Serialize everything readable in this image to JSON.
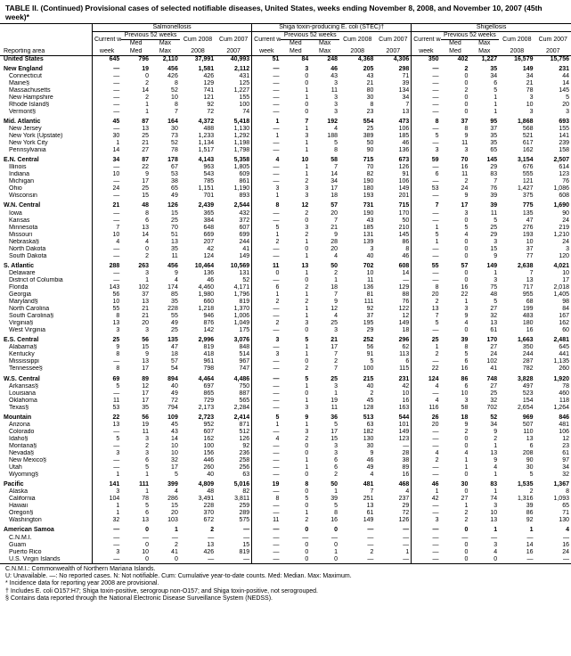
{
  "caption": "TABLE II. (Continued) Provisional cases of selected notifiable diseases, United States, weeks ending November 8, 2008, and November 10, 2007 (45th week)*",
  "diseases": [
    "Salmonellosis",
    "Shiga toxin-producing E. coli (STEC)†",
    "Shigellosis"
  ],
  "subhead": {
    "current": "Current week",
    "prev": "Previous 52 weeks",
    "m": "Med",
    "x": "Max",
    "c08": "Cum 2008",
    "c07": "Cum 2007"
  },
  "area_col": "Reporting area",
  "rows": [
    {
      "a": "United States",
      "b": 1,
      "v": [
        "645",
        "796",
        "2,110",
        "37,991",
        "40,993",
        "51",
        "84",
        "248",
        "4,368",
        "4,306",
        "350",
        "402",
        "1,227",
        "16,579",
        "15,756"
      ]
    },
    {
      "a": "New England",
      "s": 1,
      "v": [
        "—",
        "19",
        "456",
        "1,581",
        "2,112",
        "—",
        "3",
        "46",
        "205",
        "298",
        "—",
        "2",
        "35",
        "149",
        "231"
      ]
    },
    {
      "a": "Connecticut",
      "v": [
        "—",
        "0",
        "426",
        "426",
        "431",
        "—",
        "0",
        "43",
        "43",
        "71",
        "—",
        "0",
        "34",
        "34",
        "44"
      ]
    },
    {
      "a": "Maine§",
      "v": [
        "—",
        "2",
        "8",
        "129",
        "125",
        "—",
        "0",
        "3",
        "21",
        "39",
        "—",
        "0",
        "6",
        "21",
        "14"
      ]
    },
    {
      "a": "Massachusetts",
      "v": [
        "—",
        "14",
        "52",
        "741",
        "1,227",
        "—",
        "1",
        "11",
        "80",
        "134",
        "—",
        "2",
        "5",
        "78",
        "145"
      ]
    },
    {
      "a": "New Hampshire",
      "v": [
        "—",
        "2",
        "10",
        "121",
        "155",
        "—",
        "1",
        "3",
        "30",
        "34",
        "—",
        "0",
        "1",
        "3",
        "5"
      ]
    },
    {
      "a": "Rhode Island§",
      "v": [
        "—",
        "1",
        "8",
        "92",
        "100",
        "—",
        "0",
        "3",
        "8",
        "7",
        "—",
        "0",
        "1",
        "10",
        "20"
      ]
    },
    {
      "a": "Vermont§",
      "v": [
        "—",
        "1",
        "7",
        "72",
        "74",
        "—",
        "0",
        "3",
        "23",
        "13",
        "—",
        "0",
        "1",
        "3",
        "3"
      ]
    },
    {
      "a": "Mid. Atlantic",
      "s": 1,
      "v": [
        "45",
        "87",
        "164",
        "4,372",
        "5,418",
        "1",
        "7",
        "192",
        "554",
        "473",
        "8",
        "37",
        "95",
        "1,868",
        "693"
      ]
    },
    {
      "a": "New Jersey",
      "v": [
        "—",
        "13",
        "30",
        "488",
        "1,130",
        "—",
        "1",
        "4",
        "25",
        "106",
        "—",
        "8",
        "37",
        "568",
        "155"
      ]
    },
    {
      "a": "New York (Upstate)",
      "v": [
        "30",
        "25",
        "73",
        "1,233",
        "1,292",
        "1",
        "3",
        "188",
        "389",
        "185",
        "5",
        "9",
        "35",
        "521",
        "141"
      ]
    },
    {
      "a": "New York City",
      "v": [
        "1",
        "21",
        "52",
        "1,134",
        "1,198",
        "—",
        "1",
        "5",
        "50",
        "46",
        "—",
        "11",
        "35",
        "617",
        "239"
      ]
    },
    {
      "a": "Pennsylvania",
      "v": [
        "14",
        "27",
        "78",
        "1,517",
        "1,798",
        "—",
        "1",
        "8",
        "90",
        "136",
        "3",
        "3",
        "65",
        "162",
        "158"
      ]
    },
    {
      "a": "E.N. Central",
      "s": 1,
      "v": [
        "34",
        "87",
        "178",
        "4,143",
        "5,358",
        "4",
        "10",
        "58",
        "715",
        "673",
        "59",
        "70",
        "145",
        "3,154",
        "2,507"
      ]
    },
    {
      "a": "Illinois",
      "v": [
        "—",
        "22",
        "67",
        "963",
        "1,805",
        "—",
        "1",
        "7",
        "70",
        "126",
        "—",
        "16",
        "29",
        "676",
        "614"
      ]
    },
    {
      "a": "Indiana",
      "v": [
        "10",
        "9",
        "53",
        "543",
        "609",
        "—",
        "1",
        "14",
        "82",
        "91",
        "6",
        "11",
        "83",
        "555",
        "123"
      ]
    },
    {
      "a": "Michigan",
      "v": [
        "—",
        "17",
        "38",
        "785",
        "861",
        "—",
        "2",
        "34",
        "190",
        "106",
        "—",
        "2",
        "7",
        "121",
        "76"
      ]
    },
    {
      "a": "Ohio",
      "v": [
        "24",
        "25",
        "65",
        "1,151",
        "1,190",
        "3",
        "3",
        "17",
        "180",
        "149",
        "53",
        "24",
        "76",
        "1,427",
        "1,086"
      ]
    },
    {
      "a": "Wisconsin",
      "v": [
        "—",
        "15",
        "49",
        "701",
        "893",
        "1",
        "3",
        "18",
        "193",
        "201",
        "—",
        "9",
        "39",
        "375",
        "608"
      ]
    },
    {
      "a": "W.N. Central",
      "s": 1,
      "v": [
        "21",
        "48",
        "126",
        "2,439",
        "2,544",
        "8",
        "12",
        "57",
        "731",
        "715",
        "7",
        "17",
        "39",
        "775",
        "1,690"
      ]
    },
    {
      "a": "Iowa",
      "v": [
        "—",
        "8",
        "15",
        "365",
        "432",
        "—",
        "2",
        "20",
        "190",
        "170",
        "—",
        "3",
        "11",
        "135",
        "90"
      ]
    },
    {
      "a": "Kansas",
      "v": [
        "—",
        "6",
        "25",
        "384",
        "372",
        "—",
        "0",
        "7",
        "43",
        "50",
        "—",
        "0",
        "5",
        "47",
        "24"
      ]
    },
    {
      "a": "Minnesota",
      "v": [
        "7",
        "13",
        "70",
        "648",
        "607",
        "5",
        "3",
        "21",
        "185",
        "210",
        "1",
        "5",
        "25",
        "276",
        "219"
      ]
    },
    {
      "a": "Missouri",
      "v": [
        "10",
        "14",
        "51",
        "669",
        "699",
        "1",
        "2",
        "9",
        "131",
        "145",
        "5",
        "4",
        "29",
        "193",
        "1,210"
      ]
    },
    {
      "a": "Nebraska§",
      "v": [
        "4",
        "4",
        "13",
        "207",
        "244",
        "2",
        "1",
        "28",
        "139",
        "86",
        "1",
        "0",
        "3",
        "10",
        "24"
      ]
    },
    {
      "a": "North Dakota",
      "v": [
        "—",
        "0",
        "35",
        "42",
        "41",
        "—",
        "0",
        "20",
        "3",
        "8",
        "—",
        "0",
        "15",
        "37",
        "3"
      ]
    },
    {
      "a": "South Dakota",
      "v": [
        "—",
        "2",
        "11",
        "124",
        "149",
        "—",
        "1",
        "4",
        "40",
        "46",
        "—",
        "0",
        "9",
        "77",
        "120"
      ]
    },
    {
      "a": "S. Atlantic",
      "s": 1,
      "v": [
        "288",
        "263",
        "456",
        "10,464",
        "10,569",
        "11",
        "13",
        "50",
        "702",
        "608",
        "55",
        "57",
        "149",
        "2,638",
        "4,021"
      ]
    },
    {
      "a": "Delaware",
      "v": [
        "—",
        "3",
        "9",
        "136",
        "131",
        "0",
        "1",
        "2",
        "10",
        "14",
        "—",
        "0",
        "1",
        "7",
        "10"
      ]
    },
    {
      "a": "District of Columbia",
      "v": [
        "—",
        "1",
        "4",
        "46",
        "52",
        "—",
        "0",
        "1",
        "11",
        "—",
        "—",
        "0",
        "3",
        "13",
        "17"
      ]
    },
    {
      "a": "Florida",
      "v": [
        "143",
        "102",
        "174",
        "4,460",
        "4,171",
        "6",
        "2",
        "18",
        "136",
        "129",
        "8",
        "16",
        "75",
        "717",
        "2,018"
      ]
    },
    {
      "a": "Georgia",
      "v": [
        "56",
        "37",
        "85",
        "1,980",
        "1,796",
        "1",
        "1",
        "7",
        "81",
        "88",
        "20",
        "22",
        "48",
        "955",
        "1,405"
      ]
    },
    {
      "a": "Maryland§",
      "v": [
        "10",
        "13",
        "35",
        "660",
        "819",
        "2",
        "2",
        "9",
        "111",
        "76",
        "2",
        "1",
        "5",
        "68",
        "98"
      ]
    },
    {
      "a": "North Carolina",
      "v": [
        "55",
        "21",
        "228",
        "1,218",
        "1,370",
        "—",
        "1",
        "12",
        "92",
        "122",
        "13",
        "3",
        "27",
        "199",
        "84"
      ]
    },
    {
      "a": "South Carolina§",
      "v": [
        "8",
        "21",
        "55",
        "946",
        "1,006",
        "—",
        "1",
        "4",
        "37",
        "12",
        "7",
        "9",
        "32",
        "483",
        "167"
      ]
    },
    {
      "a": "Virginia§",
      "v": [
        "13",
        "20",
        "49",
        "876",
        "1,049",
        "2",
        "3",
        "25",
        "195",
        "149",
        "5",
        "4",
        "13",
        "180",
        "162"
      ]
    },
    {
      "a": "West Virginia",
      "v": [
        "3",
        "3",
        "25",
        "142",
        "175",
        "—",
        "0",
        "3",
        "29",
        "18",
        "—",
        "0",
        "61",
        "16",
        "60"
      ]
    },
    {
      "a": "E.S. Central",
      "s": 1,
      "v": [
        "25",
        "56",
        "135",
        "2,996",
        "3,076",
        "3",
        "5",
        "21",
        "252",
        "296",
        "25",
        "39",
        "170",
        "1,663",
        "2,481"
      ]
    },
    {
      "a": "Alabama§",
      "v": [
        "9",
        "15",
        "47",
        "819",
        "848",
        "—",
        "1",
        "17",
        "56",
        "62",
        "1",
        "8",
        "27",
        "350",
        "645"
      ]
    },
    {
      "a": "Kentucky",
      "v": [
        "8",
        "9",
        "18",
        "418",
        "514",
        "3",
        "1",
        "7",
        "91",
        "113",
        "2",
        "5",
        "24",
        "244",
        "441"
      ]
    },
    {
      "a": "Mississippi",
      "v": [
        "—",
        "13",
        "57",
        "961",
        "967",
        "—",
        "0",
        "2",
        "5",
        "6",
        "—",
        "6",
        "102",
        "287",
        "1,135"
      ]
    },
    {
      "a": "Tennessee§",
      "v": [
        "8",
        "17",
        "54",
        "798",
        "747",
        "—",
        "2",
        "7",
        "100",
        "115",
        "22",
        "16",
        "41",
        "782",
        "260"
      ]
    },
    {
      "a": "W.S. Central",
      "s": 1,
      "v": [
        "69",
        "89",
        "894",
        "4,464",
        "4,486",
        "—",
        "5",
        "25",
        "215",
        "231",
        "124",
        "86",
        "748",
        "3,828",
        "1,920"
      ]
    },
    {
      "a": "Arkansas§",
      "v": [
        "5",
        "12",
        "40",
        "697",
        "750",
        "—",
        "1",
        "3",
        "40",
        "42",
        "4",
        "6",
        "27",
        "497",
        "78"
      ]
    },
    {
      "a": "Louisiana",
      "v": [
        "—",
        "17",
        "49",
        "865",
        "887",
        "—",
        "0",
        "1",
        "2",
        "10",
        "—",
        "10",
        "25",
        "523",
        "460"
      ]
    },
    {
      "a": "Oklahoma",
      "v": [
        "11",
        "17",
        "72",
        "729",
        "565",
        "—",
        "1",
        "19",
        "45",
        "16",
        "4",
        "3",
        "32",
        "154",
        "118"
      ]
    },
    {
      "a": "Texas§",
      "v": [
        "53",
        "35",
        "794",
        "2,173",
        "2,284",
        "—",
        "3",
        "11",
        "128",
        "163",
        "116",
        "58",
        "702",
        "2,654",
        "1,264"
      ]
    },
    {
      "a": "Mountain",
      "s": 1,
      "v": [
        "22",
        "56",
        "109",
        "2,723",
        "2,414",
        "5",
        "9",
        "36",
        "513",
        "544",
        "26",
        "18",
        "52",
        "969",
        "846"
      ]
    },
    {
      "a": "Arizona",
      "v": [
        "13",
        "19",
        "45",
        "952",
        "871",
        "1",
        "1",
        "5",
        "63",
        "101",
        "20",
        "9",
        "34",
        "507",
        "481"
      ]
    },
    {
      "a": "Colorado",
      "v": [
        "—",
        "11",
        "43",
        "607",
        "512",
        "—",
        "3",
        "17",
        "182",
        "149",
        "—",
        "2",
        "9",
        "110",
        "106"
      ]
    },
    {
      "a": "Idaho§",
      "v": [
        "5",
        "3",
        "14",
        "162",
        "126",
        "4",
        "2",
        "15",
        "130",
        "123",
        "—",
        "0",
        "2",
        "13",
        "12"
      ]
    },
    {
      "a": "Montana§",
      "v": [
        "—",
        "2",
        "10",
        "100",
        "92",
        "—",
        "0",
        "3",
        "30",
        "—",
        "—",
        "0",
        "1",
        "6",
        "23"
      ]
    },
    {
      "a": "Nevada§",
      "v": [
        "3",
        "3",
        "10",
        "156",
        "236",
        "—",
        "0",
        "3",
        "9",
        "28",
        "4",
        "4",
        "13",
        "208",
        "61"
      ]
    },
    {
      "a": "New Mexico§",
      "v": [
        "—",
        "6",
        "32",
        "446",
        "258",
        "—",
        "1",
        "6",
        "46",
        "38",
        "2",
        "1",
        "9",
        "90",
        "97"
      ]
    },
    {
      "a": "Utah",
      "v": [
        "—",
        "5",
        "17",
        "260",
        "256",
        "—",
        "1",
        "6",
        "49",
        "89",
        "—",
        "1",
        "4",
        "30",
        "34"
      ]
    },
    {
      "a": "Wyoming§",
      "v": [
        "1",
        "1",
        "5",
        "40",
        "63",
        "—",
        "0",
        "2",
        "4",
        "16",
        "—",
        "0",
        "1",
        "5",
        "32"
      ]
    },
    {
      "a": "Pacific",
      "s": 1,
      "v": [
        "141",
        "111",
        "399",
        "4,809",
        "5,016",
        "19",
        "8",
        "50",
        "481",
        "468",
        "46",
        "30",
        "83",
        "1,535",
        "1,367"
      ]
    },
    {
      "a": "Alaska",
      "v": [
        "3",
        "1",
        "4",
        "48",
        "82",
        "—",
        "0",
        "1",
        "7",
        "4",
        "1",
        "0",
        "1",
        "2",
        "8"
      ]
    },
    {
      "a": "California",
      "v": [
        "104",
        "78",
        "286",
        "3,491",
        "3,811",
        "8",
        "5",
        "39",
        "251",
        "237",
        "42",
        "27",
        "74",
        "1,316",
        "1,093"
      ]
    },
    {
      "a": "Hawaii",
      "v": [
        "1",
        "5",
        "15",
        "228",
        "259",
        "—",
        "0",
        "5",
        "13",
        "29",
        "—",
        "1",
        "3",
        "39",
        "65"
      ]
    },
    {
      "a": "Oregon§",
      "v": [
        "1",
        "6",
        "20",
        "370",
        "289",
        "—",
        "1",
        "8",
        "61",
        "72",
        "—",
        "2",
        "10",
        "86",
        "71"
      ]
    },
    {
      "a": "Washington",
      "v": [
        "32",
        "13",
        "103",
        "672",
        "575",
        "11",
        "2",
        "16",
        "149",
        "126",
        "3",
        "2",
        "13",
        "92",
        "130"
      ]
    },
    {
      "a": "American Samoa",
      "s": 1,
      "v": [
        "—",
        "0",
        "1",
        "2",
        "—",
        "—",
        "0",
        "0",
        "—",
        "—",
        "—",
        "0",
        "1",
        "1",
        "4"
      ]
    },
    {
      "a": "C.N.M.I.",
      "v": [
        "—",
        "—",
        "—",
        "—",
        "—",
        "—",
        "—",
        "—",
        "—",
        "—",
        "—",
        "—",
        "—",
        "—",
        "—"
      ]
    },
    {
      "a": "Guam",
      "v": [
        "—",
        "0",
        "2",
        "13",
        "15",
        "—",
        "0",
        "0",
        "—",
        "—",
        "—",
        "0",
        "3",
        "14",
        "16"
      ]
    },
    {
      "a": "Puerto Rico",
      "v": [
        "3",
        "10",
        "41",
        "426",
        "819",
        "—",
        "0",
        "1",
        "2",
        "1",
        "—",
        "0",
        "4",
        "16",
        "24"
      ]
    },
    {
      "a": "U.S. Virgin Islands",
      "v": [
        "—",
        "0",
        "0",
        "—",
        "—",
        "—",
        "0",
        "0",
        "—",
        "—",
        "—",
        "0",
        "0",
        "—",
        "—"
      ]
    }
  ],
  "footnotes": [
    "C.N.M.I.: Commonwealth of Northern Mariana Islands.",
    "U: Unavailable.   —: No reported cases.   N: Not notifiable.   Cum: Cumulative year-to-date counts.   Med: Median.   Max: Maximum.",
    "* Incidence data for reporting year 2008 are provisional.",
    "† Includes E. coli O157:H7; Shiga toxin-positive, serogroup non-O157; and Shiga toxin-positive, not serogrouped.",
    "§ Contains data reported through the National Electronic Disease Surveillance System (NEDSS)."
  ],
  "colors": {
    "line": "#000000",
    "bg": "#ffffff"
  }
}
